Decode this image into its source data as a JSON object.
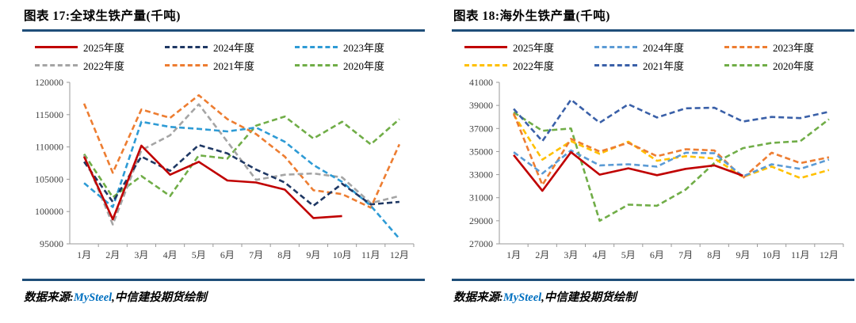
{
  "charts": [
    {
      "title": "图表 17:全球生铁产量(千吨)",
      "source_prefix": "数据来源:",
      "source_brand": "MySteel",
      "source_suffix": ",中信建投期货绘制",
      "chart_data": {
        "type": "line",
        "title": "全球生铁产量(千吨)",
        "categories": [
          "1月",
          "2月",
          "3月",
          "4月",
          "5月",
          "6月",
          "7月",
          "8月",
          "9月",
          "10月",
          "11月",
          "12月"
        ],
        "ylim": [
          95000,
          120000
        ],
        "y_ticks": [
          95000,
          100000,
          105000,
          110000,
          115000,
          120000
        ],
        "grid": false,
        "legend_position": "top",
        "series": [
          {
            "name": "2025年度",
            "color": "#C00000",
            "dashed": false,
            "values": [
              108500,
              98800,
              110200,
              105700,
              107700,
              104800,
              104500,
              103400,
              99000,
              99300,
              null,
              null
            ]
          },
          {
            "name": "2024年度",
            "color": "#1F3864",
            "dashed": true,
            "values": [
              107700,
              101500,
              108500,
              106300,
              110300,
              109000,
              106500,
              104500,
              100900,
              104300,
              101100,
              101500
            ]
          },
          {
            "name": "2023年度",
            "color": "#2E9BD5",
            "dashed": true,
            "values": [
              104400,
              100700,
              113900,
              113100,
              112800,
              112400,
              113000,
              110800,
              107200,
              104600,
              100900,
              95800
            ]
          },
          {
            "name": "2022年度",
            "color": "#A5A5A5",
            "dashed": true,
            "values": [
              108700,
              98000,
              109500,
              111800,
              116600,
              110800,
              104900,
              105700,
              105900,
              105300,
              101300,
              102400
            ]
          },
          {
            "name": "2021年度",
            "color": "#ED7D31",
            "dashed": true,
            "values": [
              116700,
              106000,
              115800,
              114500,
              118000,
              114300,
              112000,
              108500,
              103300,
              102700,
              100600,
              110400
            ]
          },
          {
            "name": "2020年度",
            "color": "#70AD47",
            "dashed": true,
            "values": [
              108900,
              102200,
              105500,
              102400,
              108700,
              108200,
              113300,
              114700,
              111300,
              113900,
              110400,
              114300
            ]
          }
        ]
      }
    },
    {
      "title": "图表 18:海外生铁产量(千吨)",
      "source_prefix": "数据来源:",
      "source_brand": "MySteel",
      "source_suffix": ",中信建投期货绘制",
      "chart_data": {
        "type": "line",
        "title": "海外生铁产量(千吨)",
        "categories": [
          "1月",
          "2月",
          "3月",
          "4月",
          "5月",
          "6月",
          "7月",
          "8月",
          "9月",
          "10月",
          "11月",
          "12月"
        ],
        "ylim": [
          27000,
          41000
        ],
        "y_ticks": [
          27000,
          29000,
          31000,
          33000,
          35000,
          37000,
          39000,
          41000
        ],
        "grid": false,
        "legend_position": "top",
        "series": [
          {
            "name": "2025年度",
            "color": "#C00000",
            "dashed": false,
            "values": [
              34700,
              31600,
              34950,
              33000,
              33550,
              32950,
              33500,
              33800,
              32900,
              null,
              null,
              null
            ]
          },
          {
            "name": "2024年度",
            "color": "#5B9BD5",
            "dashed": true,
            "values": [
              34950,
              33100,
              35100,
              33800,
              33900,
              33700,
              34900,
              34850,
              32850,
              33900,
              33500,
              34300
            ]
          },
          {
            "name": "2023年度",
            "color": "#ED7D31",
            "dashed": true,
            "values": [
              38300,
              32100,
              36100,
              35000,
              35750,
              34600,
              35200,
              35100,
              32700,
              34900,
              34000,
              34500
            ]
          },
          {
            "name": "2022年度",
            "color": "#FFC000",
            "dashed": true,
            "values": [
              38200,
              34300,
              35900,
              34800,
              35850,
              34200,
              34600,
              34400,
              32800,
              33700,
              32700,
              33400
            ]
          },
          {
            "name": "2021年度",
            "color": "#3A60A8",
            "dashed": true,
            "values": [
              38700,
              35900,
              39500,
              37500,
              39100,
              37950,
              38750,
              38800,
              37600,
              38000,
              37900,
              38450
            ]
          },
          {
            "name": "2020年度",
            "color": "#70AD47",
            "dashed": true,
            "values": [
              38400,
              36800,
              37000,
              29000,
              30400,
              30300,
              31700,
              34000,
              35300,
              35750,
              35900,
              37800
            ]
          }
        ]
      }
    }
  ]
}
